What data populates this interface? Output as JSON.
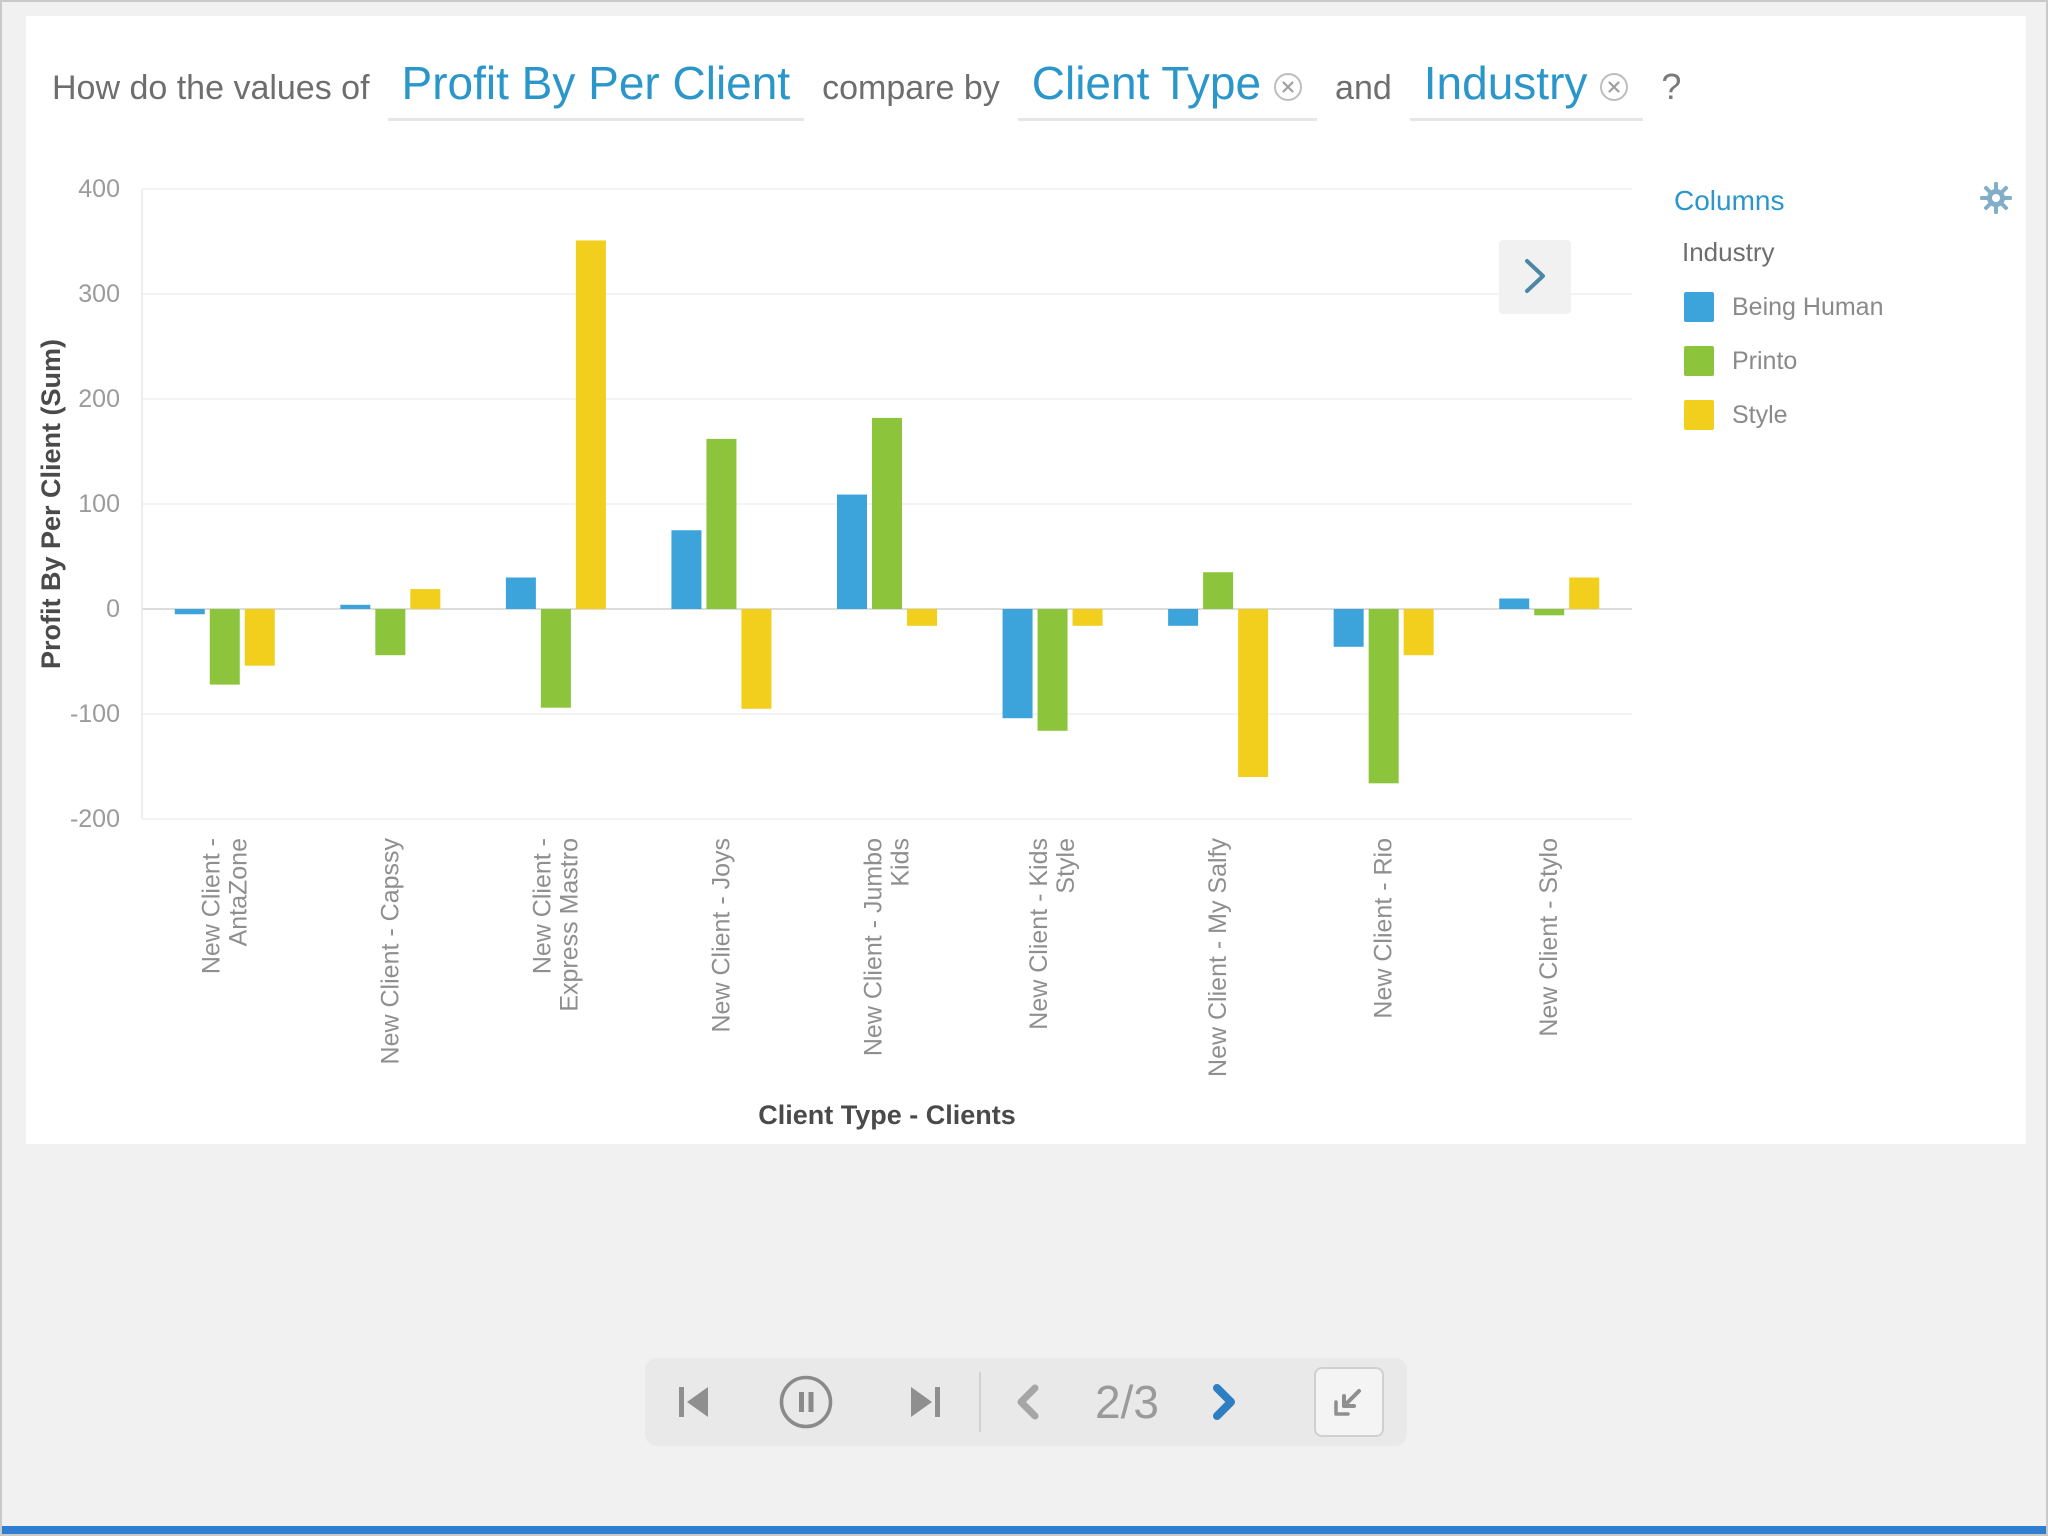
{
  "question": {
    "prefix": "How do the values of",
    "metric": "Profit By Per Client",
    "connector": "compare by",
    "dimension1": "Client Type",
    "and_label": "and",
    "dimension2": "Industry",
    "suffix": "?"
  },
  "legend": {
    "title": "Columns",
    "subtitle": "Industry",
    "items": [
      {
        "label": "Being Human",
        "color": "#3DA3DB"
      },
      {
        "label": "Printo",
        "color": "#8CC43C"
      },
      {
        "label": "Style",
        "color": "#F2CF1D"
      }
    ]
  },
  "chart_data": {
    "type": "bar",
    "title": "",
    "xlabel": "Client Type - Clients",
    "ylabel": "Profit By Per Client (Sum)",
    "ylim": [
      -200,
      400
    ],
    "yticks": [
      400,
      300,
      200,
      100,
      0,
      -100,
      -200
    ],
    "grid": true,
    "legend_position": "right",
    "categories": [
      "New Client -\nAntaZone",
      "New Client - Capssy",
      "New Client -\nExpress Mastro",
      "New Client - Joys",
      "New Client - Jumbo\nKids",
      "New Client - Kids\nStyle",
      "New Client - My Salfy",
      "New Client - Rio",
      "New Client - Stylo"
    ],
    "series": [
      {
        "name": "Being Human",
        "color": "#3DA3DB",
        "values": [
          -5,
          4,
          30,
          75,
          109,
          -104,
          -16,
          -36,
          10
        ]
      },
      {
        "name": "Printo",
        "color": "#8CC43C",
        "values": [
          -72,
          -44,
          -94,
          162,
          182,
          -116,
          35,
          -166,
          -6
        ]
      },
      {
        "name": "Style",
        "color": "#F2CF1D",
        "values": [
          -54,
          19,
          351,
          -95,
          -16,
          -16,
          -160,
          -44,
          30
        ]
      }
    ]
  },
  "controls": {
    "page_display": "2/3",
    "buttons": [
      "skip-to-start",
      "pause",
      "skip-to-end",
      "previous-page",
      "next-page",
      "collapse"
    ]
  },
  "icons": {
    "settings": "gear-icon",
    "remove_token": "circle-x-icon",
    "next_chart": "chevron-right-icon"
  },
  "colors": {
    "accent_blue": "#2B96C9",
    "control_blue": "#2E7FC2",
    "bottom_bar": "#2E7FD0",
    "text_gray": "#6e6e6e",
    "axis_gray": "#8f8f8f"
  }
}
